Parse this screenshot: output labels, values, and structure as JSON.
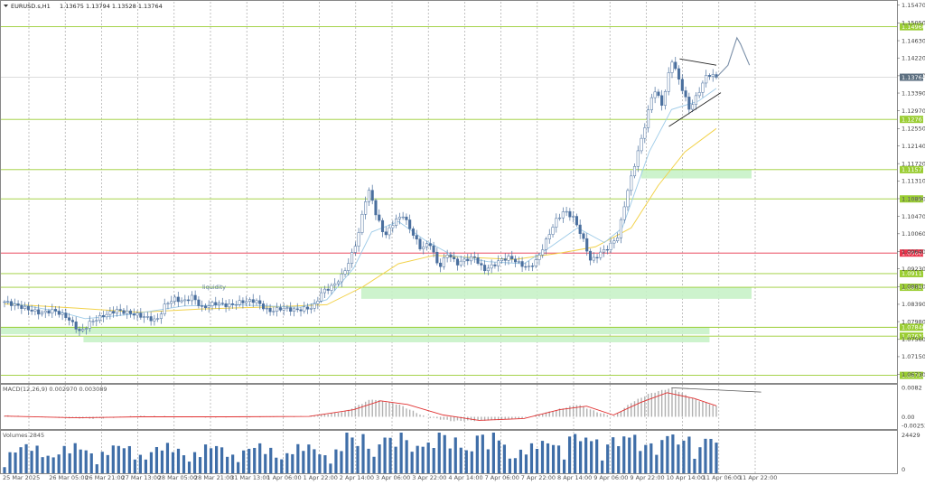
{
  "window": {
    "symbol_title": "EURUSD.s,H1",
    "ohlc_text": "1.13675 1.13794 1.13528 1.13764",
    "menu_icon": "triangle-down-icon"
  },
  "chart_data": {
    "type": "candlestick",
    "timeframe": "H1",
    "price_axis_ticks": [
      "1.15470",
      "1.15050",
      "1.14630",
      "1.14220",
      "1.13800",
      "1.13390",
      "1.12970",
      "1.12550",
      "1.12140",
      "1.11720",
      "1.11310",
      "1.10890",
      "1.10470",
      "1.10060",
      "1.09640",
      "1.09230",
      "1.08810",
      "1.08390",
      "1.07980",
      "1.07560",
      "1.07150",
      "1.06730"
    ],
    "price_range": [
      1.0655,
      1.1555
    ],
    "current_price": "1.13764",
    "horizontal_levels": [
      {
        "label": "1.14960",
        "price": 1.1496,
        "color": "#9acd32",
        "kind": "line"
      },
      {
        "label": "1.12767",
        "price": 1.12767,
        "color": "#9acd32",
        "kind": "line"
      },
      {
        "label": "1.11577",
        "price": 1.11577,
        "color": "#9acd32",
        "kind": "line"
      },
      {
        "label": "1.10885",
        "price": 1.10885,
        "color": "#9acd32",
        "kind": "line"
      },
      {
        "label": "1.09603",
        "price": 1.09603,
        "color": "#e8334a",
        "kind": "line"
      },
      {
        "label": "1.09117",
        "price": 1.09117,
        "color": "#9acd32",
        "kind": "line"
      },
      {
        "label": "1.08793",
        "price": 1.08793,
        "color": "#9acd32",
        "kind": "line"
      },
      {
        "label": "1.07846",
        "price": 1.07846,
        "color": "#9acd32",
        "kind": "line"
      },
      {
        "label": "1.07637",
        "price": 1.07637,
        "color": "#9acd32",
        "kind": "line"
      },
      {
        "label": "1.06708",
        "price": 1.06708,
        "color": "#9acd32",
        "kind": "line"
      }
    ],
    "zones": [
      {
        "price_top": 1.11577,
        "price_bottom": 1.1137,
        "x_start_index": 0.853,
        "x_end_index": 1.0
      },
      {
        "price_top": 1.08793,
        "price_bottom": 1.0852,
        "x_start_index": 0.48,
        "x_end_index": 1.0
      },
      {
        "price_top": 1.07846,
        "price_bottom": 1.0768,
        "x_start_index": 0.0,
        "x_end_index": 0.944
      },
      {
        "price_top": 1.0762,
        "price_bottom": 1.0749,
        "x_start_index": 0.11,
        "x_end_index": 0.944
      }
    ],
    "annotation": "liquidity",
    "time_labels": [
      "25 Mar 2025",
      "26 Mar 05:00",
      "26 Mar 21:00",
      "27 Mar 13:00",
      "28 Mar 05:00",
      "28 Mar 21:00",
      "31 Mar 13:00",
      "1 Apr 06:00",
      "1 Apr 22:00",
      "2 Apr 14:00",
      "3 Apr 06:00",
      "3 Apr 22:00",
      "4 Apr 14:00",
      "7 Apr 06:00",
      "7 Apr 22:00",
      "8 Apr 14:00",
      "9 Apr 06:00",
      "9 Apr 22:00",
      "10 Apr 14:00",
      "11 Apr 06:00",
      "11 Apr 22:00"
    ],
    "close_path_keypoints": [
      [
        0,
        1.0845
      ],
      [
        20,
        1.0832
      ],
      [
        40,
        1.0818
      ],
      [
        55,
        1.0825
      ],
      [
        70,
        1.0808
      ],
      [
        85,
        1.0772
      ],
      [
        95,
        1.0795
      ],
      [
        110,
        1.0812
      ],
      [
        125,
        1.0825
      ],
      [
        140,
        1.0818
      ],
      [
        155,
        1.081
      ],
      [
        170,
        1.08
      ],
      [
        180,
        1.084
      ],
      [
        190,
        1.0852
      ],
      [
        200,
        1.0845
      ],
      [
        210,
        1.0858
      ],
      [
        220,
        1.083
      ],
      [
        235,
        1.0842
      ],
      [
        250,
        1.0836
      ],
      [
        265,
        1.0845
      ],
      [
        280,
        1.0848
      ],
      [
        295,
        1.0822
      ],
      [
        310,
        1.083
      ],
      [
        325,
        1.0825
      ],
      [
        345,
        1.0832
      ],
      [
        355,
        1.087
      ],
      [
        365,
        1.088
      ],
      [
        375,
        1.09
      ],
      [
        385,
        1.094
      ],
      [
        395,
        1.1
      ],
      [
        402,
        1.108
      ],
      [
        408,
        1.111
      ],
      [
        415,
        1.105
      ],
      [
        425,
        1.1
      ],
      [
        435,
        1.1035
      ],
      [
        445,
        1.105
      ],
      [
        455,
        1.101
      ],
      [
        465,
        1.097
      ],
      [
        475,
        1.0985
      ],
      [
        485,
        1.0925
      ],
      [
        495,
        1.096
      ],
      [
        505,
        1.0935
      ],
      [
        515,
        1.0945
      ],
      [
        525,
        1.095
      ],
      [
        535,
        1.092
      ],
      [
        545,
        1.093
      ],
      [
        555,
        1.0945
      ],
      [
        565,
        1.095
      ],
      [
        575,
        1.0935
      ],
      [
        585,
        1.0925
      ],
      [
        595,
        1.0945
      ],
      [
        605,
        1.099
      ],
      [
        615,
        1.1035
      ],
      [
        625,
        1.106
      ],
      [
        635,
        1.1045
      ],
      [
        645,
        1.1
      ],
      [
        655,
        1.094
      ],
      [
        665,
        1.096
      ],
      [
        675,
        1.0975
      ],
      [
        685,
        1.1
      ],
      [
        695,
        1.11
      ],
      [
        705,
        1.118
      ],
      [
        715,
        1.126
      ],
      [
        725,
        1.135
      ],
      [
        735,
        1.131
      ],
      [
        745,
        1.142
      ],
      [
        755,
        1.136
      ],
      [
        765,
        1.13
      ],
      [
        775,
        1.134
      ],
      [
        785,
        1.1385
      ],
      [
        795,
        1.1376
      ]
    ],
    "ma_fast_keypoints": [
      [
        0,
        1.0845
      ],
      [
        60,
        1.0822
      ],
      [
        90,
        1.0805
      ],
      [
        140,
        1.0815
      ],
      [
        200,
        1.0835
      ],
      [
        260,
        1.0838
      ],
      [
        330,
        1.0832
      ],
      [
        360,
        1.085
      ],
      [
        390,
        1.0925
      ],
      [
        410,
        1.101
      ],
      [
        440,
        1.1035
      ],
      [
        470,
        1.099
      ],
      [
        500,
        1.0955
      ],
      [
        540,
        1.094
      ],
      [
        580,
        1.0935
      ],
      [
        610,
        1.0975
      ],
      [
        640,
        1.102
      ],
      [
        670,
        1.0985
      ],
      [
        690,
        1.102
      ],
      [
        720,
        1.12
      ],
      [
        745,
        1.13
      ],
      [
        775,
        1.132
      ],
      [
        795,
        1.135
      ]
    ],
    "ma_slow_keypoints": [
      [
        0,
        1.084
      ],
      [
        80,
        1.083
      ],
      [
        150,
        1.082
      ],
      [
        220,
        1.0828
      ],
      [
        300,
        1.0833
      ],
      [
        360,
        1.0838
      ],
      [
        400,
        1.088
      ],
      [
        440,
        1.0935
      ],
      [
        480,
        1.0955
      ],
      [
        520,
        1.095
      ],
      [
        570,
        1.0945
      ],
      [
        620,
        1.096
      ],
      [
        660,
        1.0975
      ],
      [
        700,
        1.102
      ],
      [
        730,
        1.112
      ],
      [
        760,
        1.12
      ],
      [
        795,
        1.1255
      ]
    ],
    "projection_path": [
      [
        795,
        1.1376
      ],
      [
        808,
        1.1405
      ],
      [
        818,
        1.147
      ],
      [
        822,
        1.1455
      ],
      [
        832,
        1.1405
      ]
    ],
    "wedge_upper": [
      [
        754,
        1.142
      ],
      [
        795,
        1.1405
      ]
    ],
    "wedge_lower": [
      [
        742,
        1.126
      ],
      [
        800,
        1.134
      ]
    ],
    "macd": {
      "label": "MACD(12,26,9) 0.002970 0.003089",
      "ticks": [
        "0.0082",
        "0.00",
        "-0.002526"
      ],
      "range": [
        -0.0032,
        0.0088
      ],
      "hist_keypoints": [
        [
          0,
          0.0003
        ],
        [
          60,
          -0.0002
        ],
        [
          100,
          -0.0005
        ],
        [
          150,
          0.0002
        ],
        [
          220,
          -0.0001
        ],
        [
          300,
          0.0
        ],
        [
          340,
          0.0001
        ],
        [
          380,
          0.0015
        ],
        [
          410,
          0.005
        ],
        [
          440,
          0.0035
        ],
        [
          470,
          0.0
        ],
        [
          500,
          -0.0012
        ],
        [
          540,
          -0.001
        ],
        [
          580,
          -0.0004
        ],
        [
          610,
          0.0015
        ],
        [
          640,
          0.0035
        ],
        [
          660,
          0.0015
        ],
        [
          680,
          0.0
        ],
        [
          700,
          0.004
        ],
        [
          720,
          0.0065
        ],
        [
          745,
          0.0082
        ],
        [
          770,
          0.005
        ],
        [
          795,
          0.003
        ]
      ],
      "signal_keypoints": [
        [
          0,
          0.0002
        ],
        [
          80,
          -0.0003
        ],
        [
          150,
          0.0
        ],
        [
          250,
          0.0
        ],
        [
          340,
          0.0001
        ],
        [
          390,
          0.002
        ],
        [
          420,
          0.0045
        ],
        [
          450,
          0.0035
        ],
        [
          490,
          0.0005
        ],
        [
          530,
          -0.001
        ],
        [
          580,
          -0.0005
        ],
        [
          620,
          0.002
        ],
        [
          650,
          0.003
        ],
        [
          680,
          0.0005
        ],
        [
          710,
          0.004
        ],
        [
          740,
          0.0068
        ],
        [
          770,
          0.0052
        ],
        [
          795,
          0.0031
        ]
      ],
      "divergence_line": [
        [
          745,
          0.0082
        ],
        [
          845,
          0.007
        ]
      ]
    },
    "volume": {
      "label": "Volumes 2845",
      "ticks": [
        "24429",
        "0"
      ],
      "max": 24429,
      "bar_count": 132
    }
  },
  "colors": {
    "bull": "#4a6f9e",
    "bear": "#4a6f9e",
    "ma_fast": "#9ecbe8",
    "ma_slow": "#f2d24a",
    "level": "#9acd32",
    "level_red": "#e8334a",
    "zone": "#c8f2c8",
    "current_badge": "#5c6f80",
    "hist": "#b0b0b0",
    "signal": "#e03030",
    "volume": "#3f6ea8",
    "grid": "#9a9a9a"
  }
}
